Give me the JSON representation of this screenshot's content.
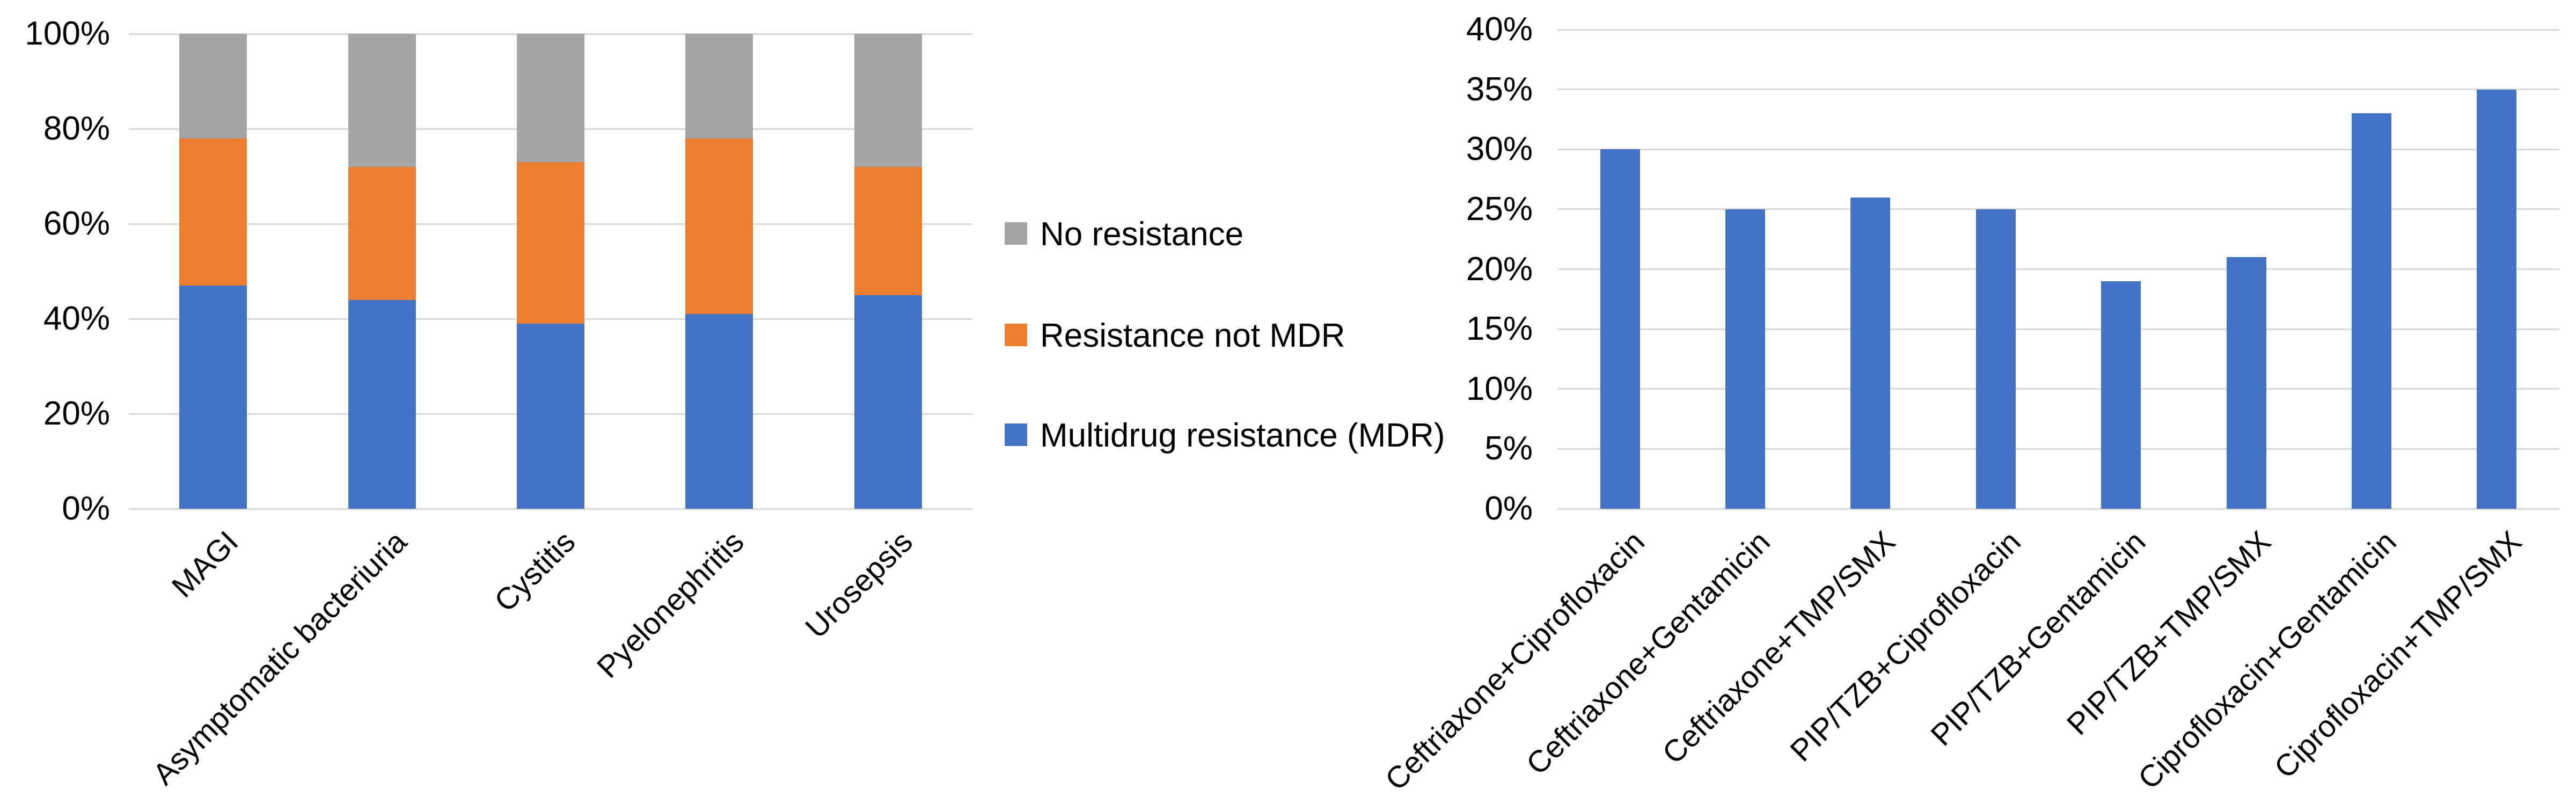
{
  "figure": {
    "background": "#ffffff",
    "text_color": "#000000",
    "gridline_color": "#d9d9d9"
  },
  "chart_data": [
    {
      "type": "bar",
      "subtype": "stacked-100",
      "title": "",
      "categories": [
        "MAGI",
        "Asymptomatic bacteriuria",
        "Cystitis",
        "Pyelonephritis",
        "Urosepsis"
      ],
      "series": [
        {
          "name": "Multidrug resistance (MDR)",
          "color": "#4472C4",
          "values": [
            47,
            44,
            39,
            41,
            45
          ]
        },
        {
          "name": "Resistance not MDR",
          "color": "#ED7D31",
          "values": [
            31,
            28,
            34,
            37,
            27
          ]
        },
        {
          "name": "No resistance",
          "color": "#A5A5A5",
          "values": [
            22,
            28,
            27,
            22,
            28
          ]
        }
      ],
      "xlabel": "",
      "ylabel": "",
      "ylim": [
        0,
        100
      ],
      "y_tick_step": 20,
      "y_tick_labels": [
        "0%",
        "20%",
        "40%",
        "60%",
        "80%",
        "100%"
      ],
      "grid": true,
      "legend_position": "right",
      "legend": [
        {
          "label": "No resistance",
          "color": "#A5A5A5"
        },
        {
          "label": "Resistance not MDR",
          "color": "#ED7D31"
        },
        {
          "label": "Multidrug resistance (MDR)",
          "color": "#4472C4"
        }
      ]
    },
    {
      "type": "bar",
      "subtype": "simple",
      "title": "",
      "categories": [
        "Ceftriaxone+Ciprofloxacin",
        "Ceftriaxone+Gentamicin",
        "Ceftriaxone+TMP/SMX",
        "PIP/TZB+Ciprofloxacin",
        "PIP/TZB+Gentamicin",
        "PIP/TZB+TMP/SMX",
        "Ciprofloxacin+Gentamicin",
        "Ciprofloxacin+TMP/SMX"
      ],
      "values": [
        30,
        25,
        26,
        25,
        19,
        21,
        33,
        35
      ],
      "bar_color": "#4472C4",
      "xlabel": "",
      "ylabel": "",
      "ylim": [
        0,
        40
      ],
      "y_tick_step": 5,
      "y_tick_labels": [
        "0%",
        "5%",
        "10%",
        "15%",
        "20%",
        "25%",
        "30%",
        "35%",
        "40%"
      ],
      "grid": true,
      "legend_position": "none"
    }
  ]
}
